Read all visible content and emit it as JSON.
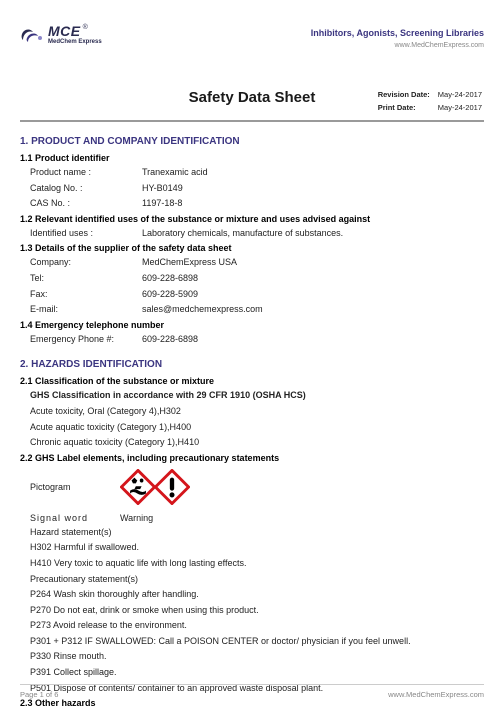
{
  "header": {
    "logo_mce": "MCE",
    "logo_sub": "MedChem Express",
    "tagline": "Inhibitors, Agonists, Screening Libraries",
    "website": "www.MedChemExpress.com"
  },
  "title": "Safety Data Sheet",
  "revision": {
    "rev_label": "Revision Date:",
    "rev_value": "May-24-2017",
    "print_label": "Print Date:",
    "print_value": "May-24-2017"
  },
  "section1": {
    "heading": "1. PRODUCT AND COMPANY IDENTIFICATION",
    "sub1": "1.1 Product identifier",
    "product_name_k": "Product name :",
    "product_name_v": "Tranexamic acid",
    "catalog_k": "Catalog No. :",
    "catalog_v": "HY-B0149",
    "cas_k": "CAS No. :",
    "cas_v": "1197-18-8",
    "sub2": "1.2 Relevant identified uses of the substance or mixture and uses advised against",
    "uses_k": "Identified uses :",
    "uses_v": "Laboratory chemicals, manufacture of substances.",
    "sub3": "1.3 Details of the supplier of the safety data sheet",
    "company_k": "Company:",
    "company_v": "MedChemExpress USA",
    "tel_k": "Tel:",
    "tel_v": "609-228-6898",
    "fax_k": "Fax:",
    "fax_v": "609-228-5909",
    "email_k": "E-mail:",
    "email_v": "sales@medchemexpress.com",
    "sub4": "1.4 Emergency telephone number",
    "emerg_k": "Emergency Phone #:",
    "emerg_v": "609-228-6898"
  },
  "section2": {
    "heading": "2. HAZARDS IDENTIFICATION",
    "sub1": "2.1 Classification of the substance or mixture",
    "ghs_class": "GHS Classification in accordance with 29 CFR 1910 (OSHA HCS)",
    "class_lines": [
      "Acute toxicity, Oral (Category 4),H302",
      "Acute aquatic toxicity (Category 1),H400",
      "Chronic aquatic toxicity (Category 1),H410"
    ],
    "sub2": "2.2 GHS Label elements, including precautionary statements",
    "pictogram_label": "Pictogram",
    "signal_k": "Signal word",
    "signal_v": "Warning",
    "hazard_st_label": "Hazard statement(s)",
    "hazard_lines": [
      "H302 Harmful if swallowed.",
      "H410 Very toxic to aquatic life with long lasting effects."
    ],
    "precaution_label": "Precautionary statement(s)",
    "precaution_lines": [
      "P264 Wash skin thoroughly after handling.",
      "P270 Do not eat, drink or smoke when using this product.",
      "P273 Avoid release to the environment.",
      "P301 + P312 IF SWALLOWED: Call a POISON CENTER or doctor/ physician if you feel unwell.",
      "P330 Rinse mouth.",
      "P391 Collect spillage.",
      "P501 Dispose of contents/ container to an approved waste disposal plant."
    ],
    "sub3": "2.3 Other hazards"
  },
  "footer": {
    "page": "Page 1 of 6",
    "website": "www.MedChemExpress.com"
  },
  "colors": {
    "brand_navy": "#3b3580",
    "ghs_red": "#d4151b",
    "divider": "#9a9a9a"
  }
}
